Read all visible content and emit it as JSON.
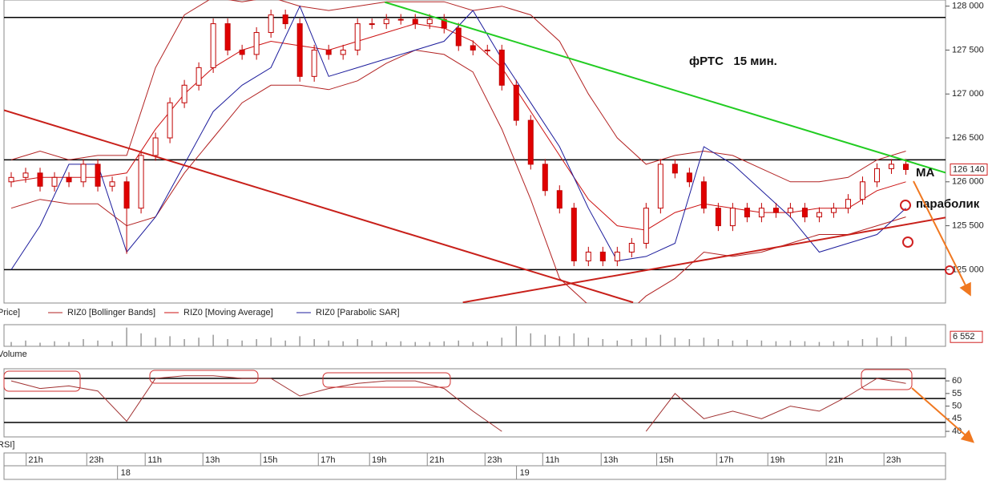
{
  "chart_data": [
    {
      "type": "candlestick",
      "name": "Price]",
      "title": "фРТС   15 мин.",
      "annotations": [
        "MA",
        "параболик"
      ],
      "xlim": [
        0,
        130.5
      ],
      "ylim": [
        124620,
        128070
      ],
      "xticks": [
        {
          "value": 4.4,
          "label": "21h"
        },
        {
          "value": 12.8,
          "label": "23h"
        },
        {
          "value": 20.9,
          "label": "11h"
        },
        {
          "value": 28.9,
          "label": "13h"
        },
        {
          "value": 36.9,
          "label": "15h"
        },
        {
          "value": 44.9,
          "label": "17h"
        },
        {
          "value": 52,
          "label": "19h"
        },
        {
          "value": 60,
          "label": "21h"
        },
        {
          "value": 68,
          "label": "23h"
        },
        {
          "value": 76,
          "label": "11h"
        },
        {
          "value": 84.1,
          "label": "13h"
        },
        {
          "value": 91.8,
          "label": "15h"
        },
        {
          "value": 100.1,
          "label": "17h"
        },
        {
          "value": 107.2,
          "label": "19h"
        },
        {
          "value": 115.3,
          "label": "21h"
        },
        {
          "value": 123.3,
          "label": "23h"
        }
      ],
      "date_ticks": [
        {
          "value": 16.4,
          "label": "18"
        },
        {
          "value": 71.7,
          "label": "19"
        }
      ],
      "yticks": [
        {
          "value": 128000,
          "label": "128 000"
        },
        {
          "value": 127500,
          "label": "127 500"
        },
        {
          "value": 127000,
          "label": "127 000"
        },
        {
          "value": 126500,
          "label": "126 500"
        },
        {
          "value": 126000,
          "label": "126 000"
        },
        {
          "value": 125500,
          "label": "125 500"
        },
        {
          "value": 125000,
          "label": "125 000"
        }
      ],
      "last_price": {
        "value": 126140,
        "label": "126 140"
      },
      "levels": [
        127872,
        126250,
        125000
      ],
      "trend_lines": [
        {
          "color": "#22cc22",
          "x": [
            52.8,
            130.5
          ],
          "y": [
            128045,
            126104
          ]
        },
        {
          "color": "#c8201a",
          "x": [
            0,
            87.2
          ],
          "y": [
            126815,
            124627
          ]
        },
        {
          "color": "#c8201a",
          "x": [
            63.6,
            130.5
          ],
          "y": [
            124627,
            125593
          ]
        }
      ],
      "x": [
        1,
        3,
        5,
        7,
        9,
        11,
        13,
        15,
        17,
        19,
        21,
        23,
        25,
        27,
        29,
        31,
        33,
        35,
        37,
        39,
        41,
        43,
        45,
        47,
        49,
        51,
        53,
        55,
        57,
        59,
        61,
        63,
        65,
        67,
        69,
        71,
        73,
        75,
        77,
        79,
        81,
        83,
        85,
        87,
        89,
        91,
        93,
        95,
        97,
        99,
        101,
        103,
        105,
        107,
        109,
        111,
        113,
        115,
        117,
        119,
        121,
        123,
        125
      ],
      "open": [
        126000,
        126050,
        126100,
        125950,
        126050,
        126000,
        126200,
        125950,
        126000,
        125700,
        126300,
        126500,
        126900,
        127100,
        127300,
        127800,
        127500,
        127450,
        127700,
        127900,
        127800,
        127200,
        127500,
        127450,
        127500,
        127800,
        127800,
        127850,
        127850,
        127800,
        127850,
        127750,
        127550,
        127500,
        127500,
        127100,
        126700,
        126200,
        125900,
        125700,
        125100,
        125200,
        125100,
        125200,
        125300,
        125700,
        126200,
        126100,
        126000,
        125700,
        125500,
        125700,
        125600,
        125700,
        125650,
        125700,
        125600,
        125650,
        125700,
        125800,
        126000,
        126150,
        126200
      ],
      "high": [
        126110,
        126160,
        126160,
        126110,
        126110,
        126260,
        126260,
        126060,
        126060,
        126360,
        126560,
        126960,
        127160,
        127360,
        127860,
        127860,
        127560,
        127760,
        127960,
        127960,
        127860,
        127560,
        127560,
        127560,
        127860,
        127860,
        127910,
        127910,
        127910,
        127910,
        127910,
        127810,
        127610,
        127560,
        127560,
        127160,
        126760,
        126260,
        125960,
        125760,
        125260,
        125260,
        125260,
        125360,
        125760,
        126260,
        126260,
        126160,
        126060,
        125760,
        125760,
        125760,
        125760,
        125760,
        125760,
        125760,
        125710,
        125760,
        125860,
        126060,
        126210,
        126260,
        126260
      ],
      "low": [
        125940,
        125990,
        125890,
        125890,
        125940,
        125940,
        125890,
        125890,
        125180,
        125640,
        126240,
        126440,
        126840,
        127040,
        127240,
        127440,
        127390,
        127390,
        127640,
        127740,
        127140,
        127140,
        127390,
        127390,
        127440,
        127740,
        127740,
        127790,
        127740,
        127740,
        127690,
        127490,
        127440,
        127440,
        127040,
        126640,
        126140,
        125840,
        125640,
        125040,
        125040,
        125040,
        125040,
        125140,
        125240,
        125640,
        126040,
        125940,
        125640,
        125440,
        125440,
        125540,
        125540,
        125590,
        125590,
        125540,
        125540,
        125590,
        125640,
        125740,
        125940,
        126090,
        126080
      ],
      "close": [
        126050,
        126100,
        125950,
        126050,
        126000,
        126200,
        125950,
        126000,
        125700,
        126300,
        126500,
        126900,
        127100,
        127300,
        127800,
        127500,
        127450,
        127700,
        127900,
        127800,
        127200,
        127500,
        127450,
        127500,
        127800,
        127800,
        127850,
        127850,
        127800,
        127850,
        127750,
        127550,
        127500,
        127500,
        127100,
        126700,
        126200,
        125900,
        125700,
        125100,
        125200,
        125100,
        125200,
        125300,
        125700,
        126200,
        126100,
        126000,
        125700,
        125500,
        125700,
        125600,
        125700,
        125650,
        125700,
        125600,
        125650,
        125700,
        125800,
        126000,
        126150,
        126200,
        126140
      ],
      "overlay_x": [
        1,
        5,
        9,
        13,
        17,
        21,
        25,
        29,
        33,
        37,
        41,
        45,
        49,
        53,
        57,
        61,
        65,
        69,
        73,
        77,
        81,
        85,
        89,
        93,
        97,
        101,
        105,
        109,
        113,
        117,
        121,
        125
      ],
      "overlays": [
        {
          "name": "RIZ0 [Bollinger Bands]",
          "color": "#b22222",
          "upper": [
            126250,
            126350,
            126250,
            126300,
            126300,
            127300,
            127900,
            128100,
            128050,
            128100,
            128000,
            127950,
            128000,
            128050,
            128050,
            128050,
            127950,
            128000,
            127900,
            127600,
            127000,
            126500,
            126200,
            126300,
            126350,
            126300,
            126150,
            126000,
            126000,
            126050,
            126250,
            126350
          ],
          "lower": [
            125700,
            125800,
            125750,
            125750,
            125500,
            125600,
            126100,
            126500,
            126900,
            127100,
            127100,
            127050,
            127150,
            127350,
            127500,
            127450,
            127250,
            126600,
            125800,
            124900,
            124600,
            124400,
            124700,
            124900,
            125200,
            125150,
            125200,
            125300,
            125400,
            125400,
            125500,
            125600
          ]
        },
        {
          "name": "RIZ0 [Moving Average]",
          "color": "#cc1010",
          "values": [
            126000,
            126050,
            126050,
            126050,
            126100,
            126600,
            127000,
            127300,
            127500,
            127600,
            127550,
            127500,
            127600,
            127700,
            127800,
            127750,
            127600,
            127300,
            126800,
            126300,
            125800,
            125500,
            125450,
            125650,
            125750,
            125700,
            125650,
            125650,
            125700,
            125700,
            125900,
            126000
          ]
        },
        {
          "name": "RIZ0 [Parabolic SAR]",
          "color": "#1c1c9c",
          "values": [
            125000,
            125500,
            126200,
            126200,
            125200,
            125600,
            126200,
            126800,
            127100,
            127300,
            128000,
            127200,
            127300,
            127400,
            127500,
            127600,
            127950,
            127400,
            126900,
            126400,
            125700,
            125100,
            125150,
            125300,
            126400,
            126200,
            125900,
            125600,
            125200,
            125300,
            125400,
            125700
          ]
        }
      ]
    },
    {
      "type": "bar",
      "name": "Volume",
      "color": "#999999",
      "xlim": [
        0,
        130.5
      ],
      "ylim": [
        0,
        15000
      ],
      "last_value": {
        "value": 6552,
        "label": "6 552"
      },
      "x": [
        1,
        3,
        5,
        7,
        9,
        11,
        13,
        15,
        17,
        19,
        21,
        23,
        25,
        27,
        29,
        31,
        33,
        35,
        37,
        39,
        41,
        43,
        45,
        47,
        49,
        51,
        53,
        55,
        57,
        59,
        61,
        63,
        65,
        67,
        69,
        71,
        73,
        75,
        77,
        79,
        81,
        83,
        85,
        87,
        89,
        91,
        93,
        95,
        97,
        99,
        101,
        103,
        105,
        107,
        109,
        111,
        113,
        115,
        117,
        119,
        121,
        123,
        125
      ],
      "values": [
        3000,
        4000,
        2500,
        3500,
        3000,
        5000,
        4000,
        3500,
        13000,
        9000,
        6000,
        7000,
        5000,
        6000,
        8000,
        5000,
        4000,
        5000,
        6000,
        4000,
        7000,
        5000,
        4000,
        3500,
        5000,
        4000,
        3000,
        3500,
        3000,
        3000,
        3500,
        4000,
        3000,
        3500,
        6000,
        14000,
        9000,
        8000,
        7000,
        9000,
        6000,
        5000,
        4000,
        5000,
        6000,
        8000,
        6000,
        5000,
        6000,
        5000,
        4000,
        4500,
        4000,
        3500,
        4000,
        3500,
        3000,
        3500,
        4000,
        5000,
        6000,
        7000,
        6552
      ]
    },
    {
      "type": "line",
      "name": "RSI]",
      "color": "#a03030",
      "xlim": [
        0,
        130.5
      ],
      "ylim": [
        37.8,
        64.8
      ],
      "yticks": [
        60,
        55,
        50,
        45,
        40
      ],
      "levels": [
        61,
        53,
        43.5
      ],
      "x": [
        1,
        5,
        9,
        13,
        17,
        21,
        25,
        29,
        33,
        37,
        41,
        45,
        49,
        53,
        57,
        61,
        65,
        69,
        73,
        77,
        81,
        85,
        89,
        93,
        97,
        101,
        105,
        109,
        113,
        117,
        121,
        125
      ],
      "values": [
        60,
        57,
        58,
        56,
        44,
        61,
        62,
        62,
        61,
        61,
        54,
        57,
        59,
        60,
        60,
        57,
        48,
        40,
        null,
        null,
        null,
        null,
        40,
        55,
        45,
        48,
        45,
        50,
        48,
        54,
        61,
        59
      ]
    }
  ]
}
